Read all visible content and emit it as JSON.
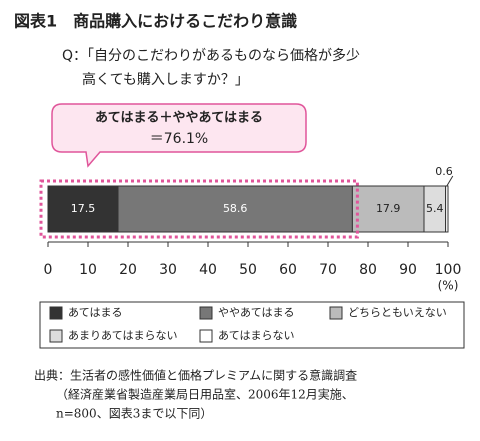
{
  "chart_data": {
    "type": "stacked-bar",
    "title": "図表1　商品購入におけるこだわり意識",
    "subtitle": [
      "Q：「自分のこだわりがあるものなら価格が多少",
      "高くても購入しますか？」"
    ],
    "annotation": [
      "あてはまる＋ややあてはまる",
      "＝76.1%"
    ],
    "series": [
      {
        "name": "あてはまる",
        "color": "#333333",
        "values": [
          17.5
        ]
      },
      {
        "name": "ややあてはまる",
        "color": "#777777",
        "values": [
          58.6
        ]
      },
      {
        "name": "どちらともいえない",
        "color": "#bbbbbb",
        "values": [
          17.9
        ]
      },
      {
        "name": "あまりあてはまらない",
        "color": "#dddddd",
        "values": [
          5.4
        ]
      },
      {
        "name": "あてはまらない",
        "color": "#ffffff",
        "values": [
          0.6
        ]
      }
    ],
    "xlim": [
      0,
      100
    ],
    "xticks": [
      0,
      10,
      20,
      30,
      40,
      50,
      60,
      70,
      80,
      90,
      100
    ],
    "x_label": "(%)",
    "source": [
      "出典：生活者の感性価値と価格プレミアムに関する意識調査",
      "（経済産業省製造産業局日用品室、2006年12月実施、",
      "n=800、図表3まで以下同）"
    ]
  }
}
